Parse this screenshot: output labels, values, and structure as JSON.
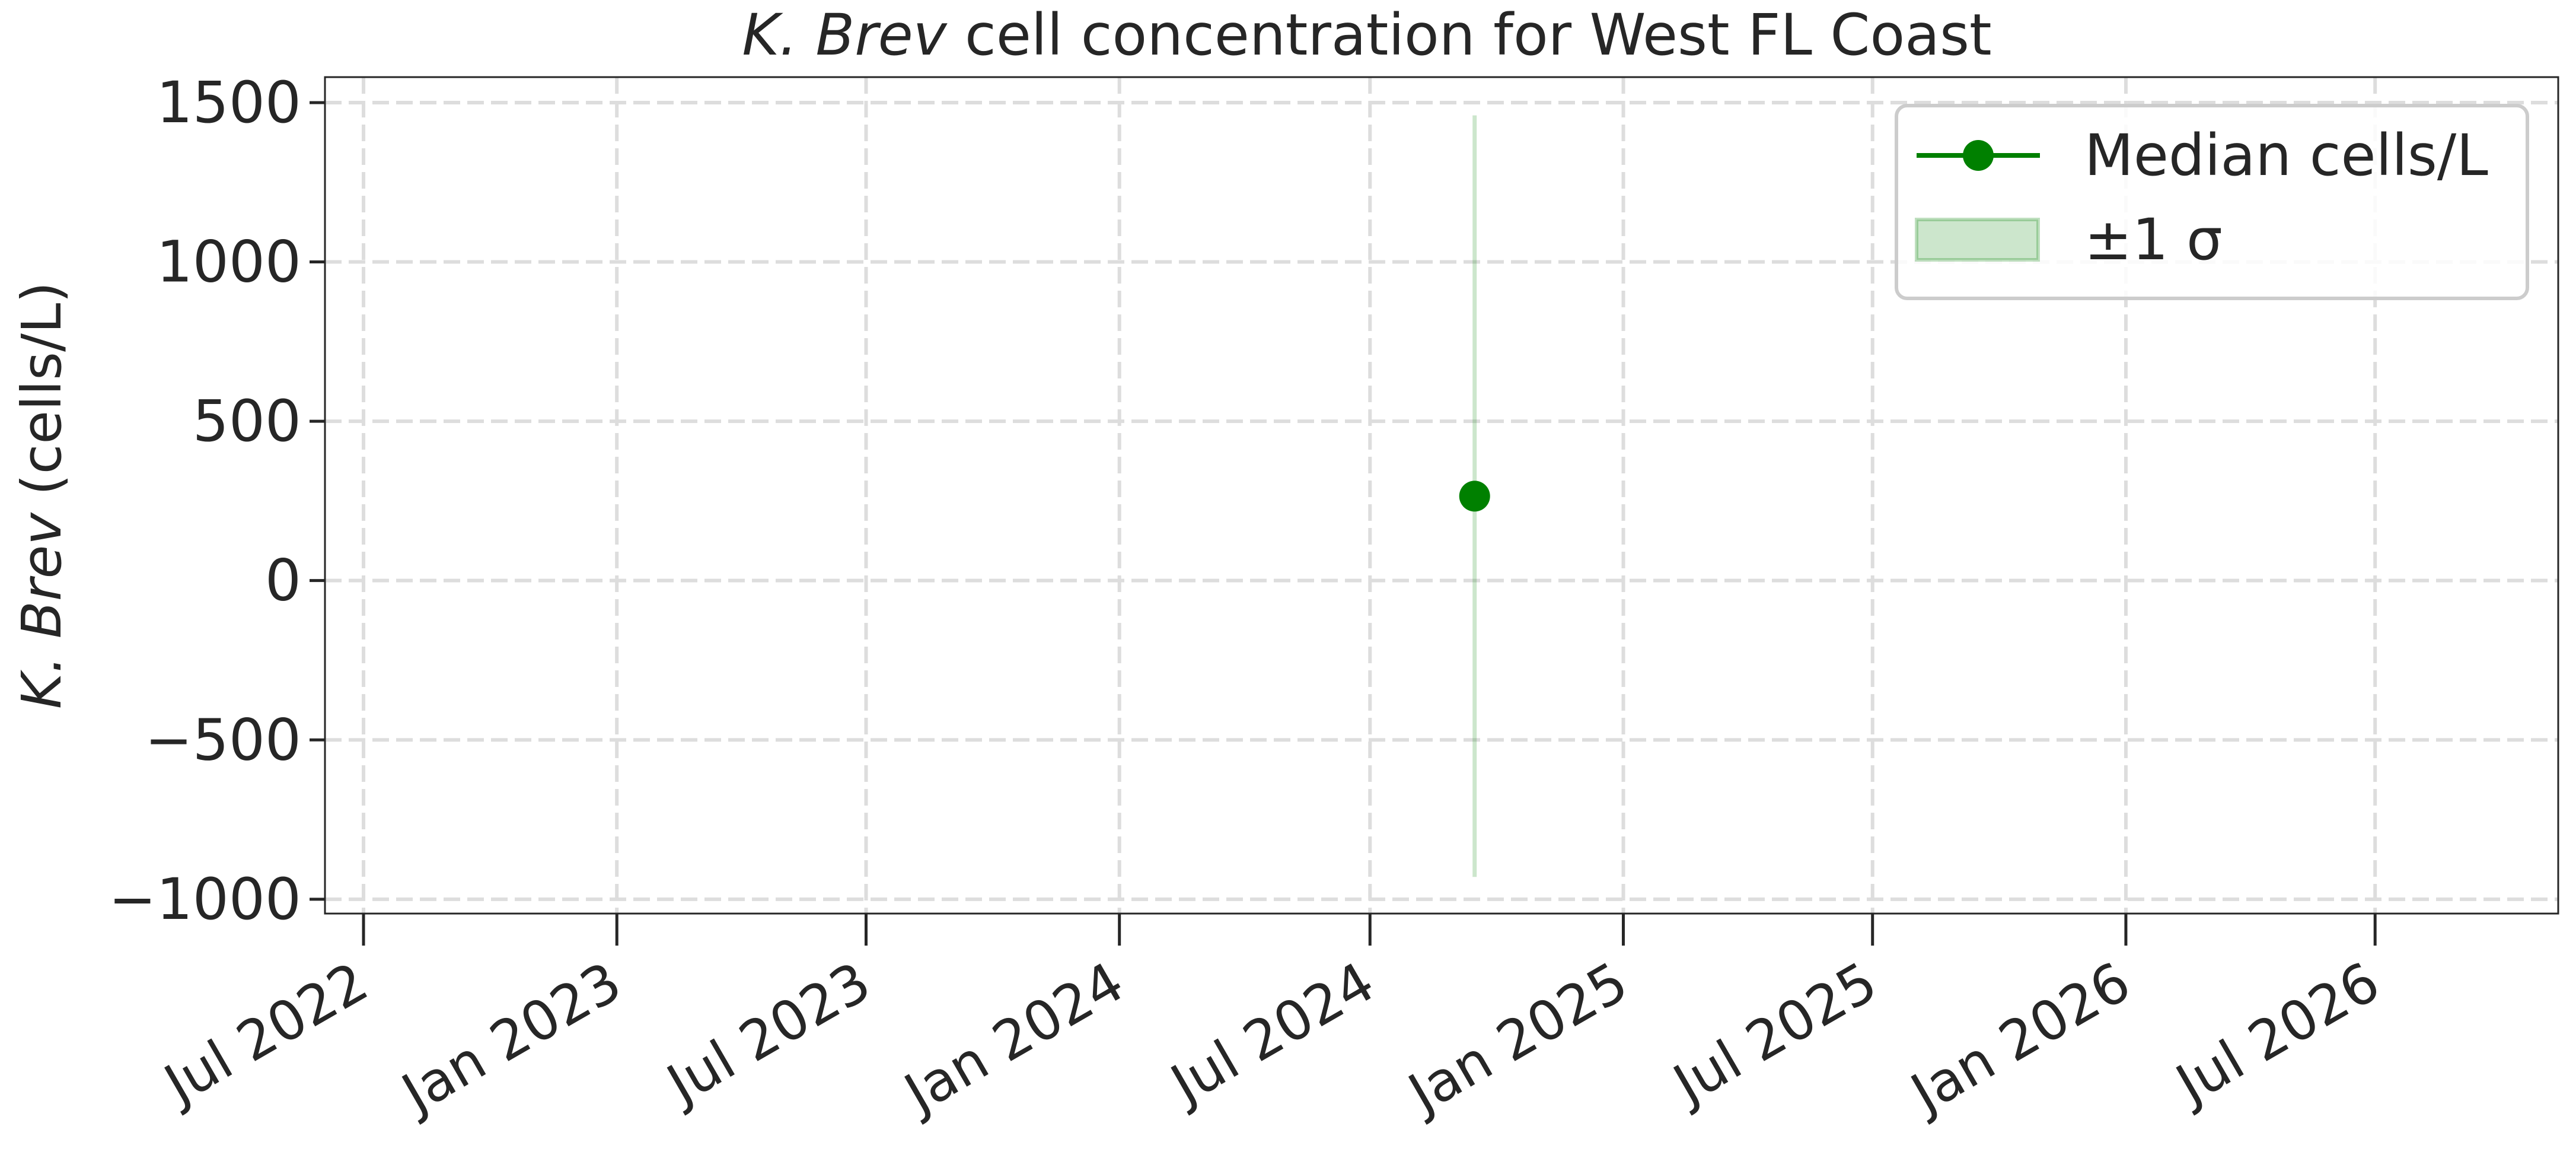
{
  "chart_data": {
    "type": "line",
    "title": {
      "italic_part": "K. Brev",
      "rest": " cell concentration for West FL Coast"
    },
    "xlabel": "",
    "ylabel": {
      "italic_part": "K. Brev",
      "rest": " (cells/L)"
    },
    "x_ticks": [
      "2022-07-01",
      "2023-01-01",
      "2023-07-01",
      "2024-01-01",
      "2024-07-01",
      "2025-01-01",
      "2025-07-01",
      "2026-01-01",
      "2026-07-01"
    ],
    "x_tick_labels": [
      "Jul 2022",
      "Jan 2023",
      "Jul 2023",
      "Jan 2024",
      "Jul 2024",
      "Jan 2025",
      "Jul 2025",
      "Jan 2026",
      "Jul 2026"
    ],
    "xlim": [
      "2022-06-03",
      "2026-11-11"
    ],
    "y_ticks": [
      1500,
      1000,
      500,
      0,
      -500,
      -1000
    ],
    "y_tick_labels": [
      "1500",
      "1000",
      "500",
      "0",
      "−500",
      "−1000"
    ],
    "ylim": [
      -1045,
      1580
    ],
    "grid": true,
    "legend_position": "top-right",
    "series": [
      {
        "name": "Median cells/L",
        "color": "#008000",
        "points": [
          {
            "x": "2024-09-15",
            "y": 265
          }
        ]
      }
    ],
    "bands": [
      {
        "name": "±1 σ",
        "color": "#008000",
        "points": [
          {
            "x": "2024-09-15",
            "low": -930,
            "high": 1460
          }
        ]
      }
    ]
  }
}
